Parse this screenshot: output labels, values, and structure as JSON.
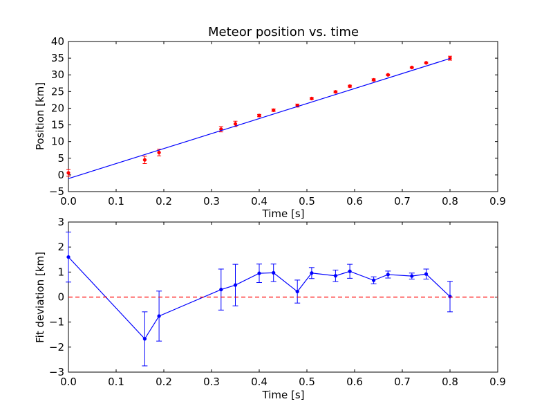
{
  "chart_data": [
    {
      "type": "scatter",
      "title": "Meteor position vs. time",
      "xlabel": "Time [s]",
      "ylabel": "Position [km]",
      "xlim": [
        0.0,
        0.9
      ],
      "ylim": [
        -5,
        40
      ],
      "xticks": [
        "0.0",
        "0.1",
        "0.2",
        "0.3",
        "0.4",
        "0.5",
        "0.6",
        "0.7",
        "0.8",
        "0.9"
      ],
      "yticks": [
        "−5",
        "0",
        "5",
        "10",
        "15",
        "20",
        "25",
        "30",
        "35",
        "40"
      ],
      "grid": false,
      "series": [
        {
          "kind": "errorbar-points",
          "color": "#ff0000",
          "x": [
            0.0,
            0.16,
            0.19,
            0.32,
            0.35,
            0.4,
            0.43,
            0.48,
            0.51,
            0.56,
            0.59,
            0.64,
            0.67,
            0.72,
            0.75,
            0.8
          ],
          "y": [
            0.6,
            4.5,
            6.7,
            13.7,
            15.3,
            17.8,
            19.4,
            20.8,
            22.9,
            24.9,
            26.6,
            28.5,
            30.0,
            32.2,
            33.6,
            35.0
          ],
          "yerr": [
            1.0,
            1.1,
            1.0,
            0.8,
            0.8,
            0.35,
            0.35,
            0.45,
            0.25,
            0.25,
            0.3,
            0.3,
            0.2,
            0.15,
            0.2,
            0.6
          ]
        },
        {
          "kind": "fit-line",
          "color": "#0000ff",
          "x": [
            0.0,
            0.8
          ],
          "y": [
            -1.1,
            34.9
          ]
        }
      ]
    },
    {
      "type": "line",
      "title": "",
      "xlabel": "Time [s]",
      "ylabel": "Fit deviation [km]",
      "xlim": [
        0.0,
        0.9
      ],
      "ylim": [
        -3,
        3
      ],
      "xticks": [
        "0.0",
        "0.1",
        "0.2",
        "0.3",
        "0.4",
        "0.5",
        "0.6",
        "0.7",
        "0.8",
        "0.9"
      ],
      "yticks": [
        "−3",
        "−2",
        "−1",
        "0",
        "1",
        "2",
        "3"
      ],
      "grid": false,
      "series": [
        {
          "kind": "errorbar-line",
          "color": "#0000ff",
          "x": [
            0.0,
            0.16,
            0.19,
            0.32,
            0.35,
            0.4,
            0.43,
            0.48,
            0.51,
            0.56,
            0.59,
            0.64,
            0.67,
            0.72,
            0.75,
            0.8
          ],
          "y": [
            1.6,
            -1.67,
            -0.76,
            0.3,
            0.48,
            0.95,
            0.97,
            0.22,
            0.96,
            0.85,
            1.03,
            0.67,
            0.9,
            0.84,
            0.92,
            0.02
          ],
          "yerr": [
            1.0,
            1.08,
            1.0,
            0.82,
            0.83,
            0.37,
            0.35,
            0.46,
            0.22,
            0.23,
            0.28,
            0.14,
            0.14,
            0.12,
            0.2,
            0.61
          ]
        },
        {
          "kind": "reference-line",
          "color": "#ff0000",
          "dashed": true,
          "y": 0
        }
      ]
    }
  ]
}
